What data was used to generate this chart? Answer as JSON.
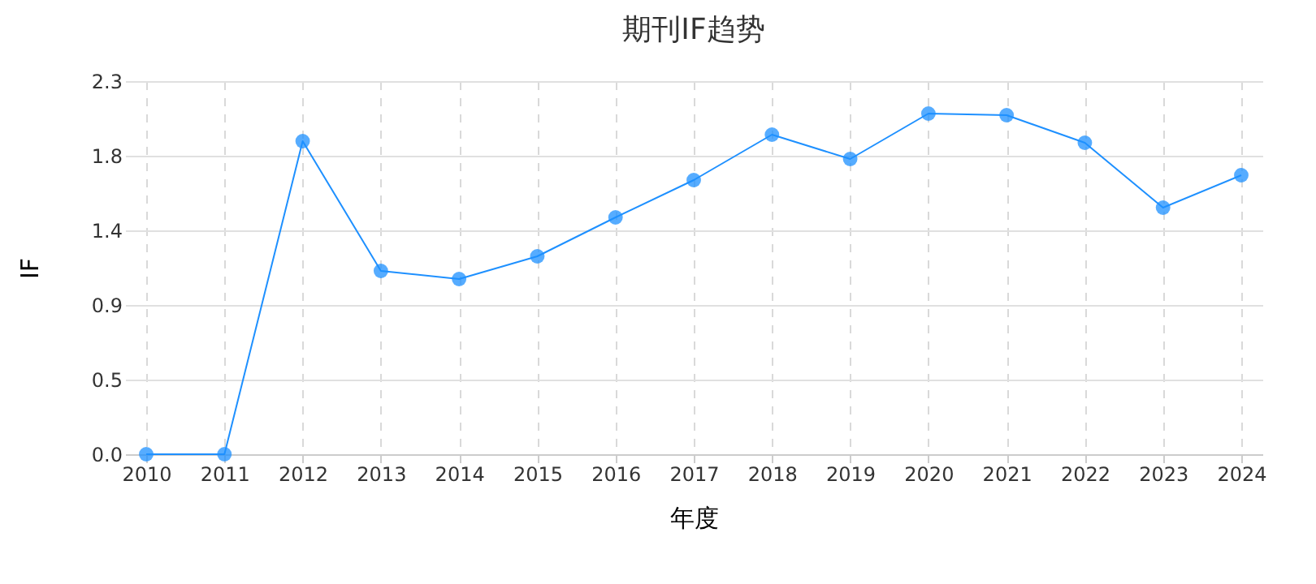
{
  "chart_data": {
    "type": "line",
    "title": "期刊IF趋势",
    "xlabel": "年度",
    "ylabel": "IF",
    "categories": [
      "2010",
      "2011",
      "2012",
      "2013",
      "2014",
      "2015",
      "2016",
      "2017",
      "2018",
      "2019",
      "2020",
      "2021",
      "2022",
      "2023",
      "2024"
    ],
    "series": [
      {
        "color": "#1e90ff",
        "values": [
          0,
          0,
          1.93,
          1.13,
          1.08,
          1.22,
          1.46,
          1.69,
          1.97,
          1.82,
          2.1,
          2.09,
          1.92,
          1.52,
          1.72
        ]
      }
    ],
    "ylim": [
      0,
      2.3
    ],
    "yticks": [
      {
        "value": 0,
        "label": "0.0"
      },
      {
        "value": 0.46,
        "label": "0.5"
      },
      {
        "value": 0.92,
        "label": "0.9"
      },
      {
        "value": 1.38,
        "label": "1.4"
      },
      {
        "value": 1.84,
        "label": "1.8"
      },
      {
        "value": 2.3,
        "label": "2.3"
      }
    ],
    "grid": true,
    "marker": "circle",
    "line_style": "solid"
  }
}
